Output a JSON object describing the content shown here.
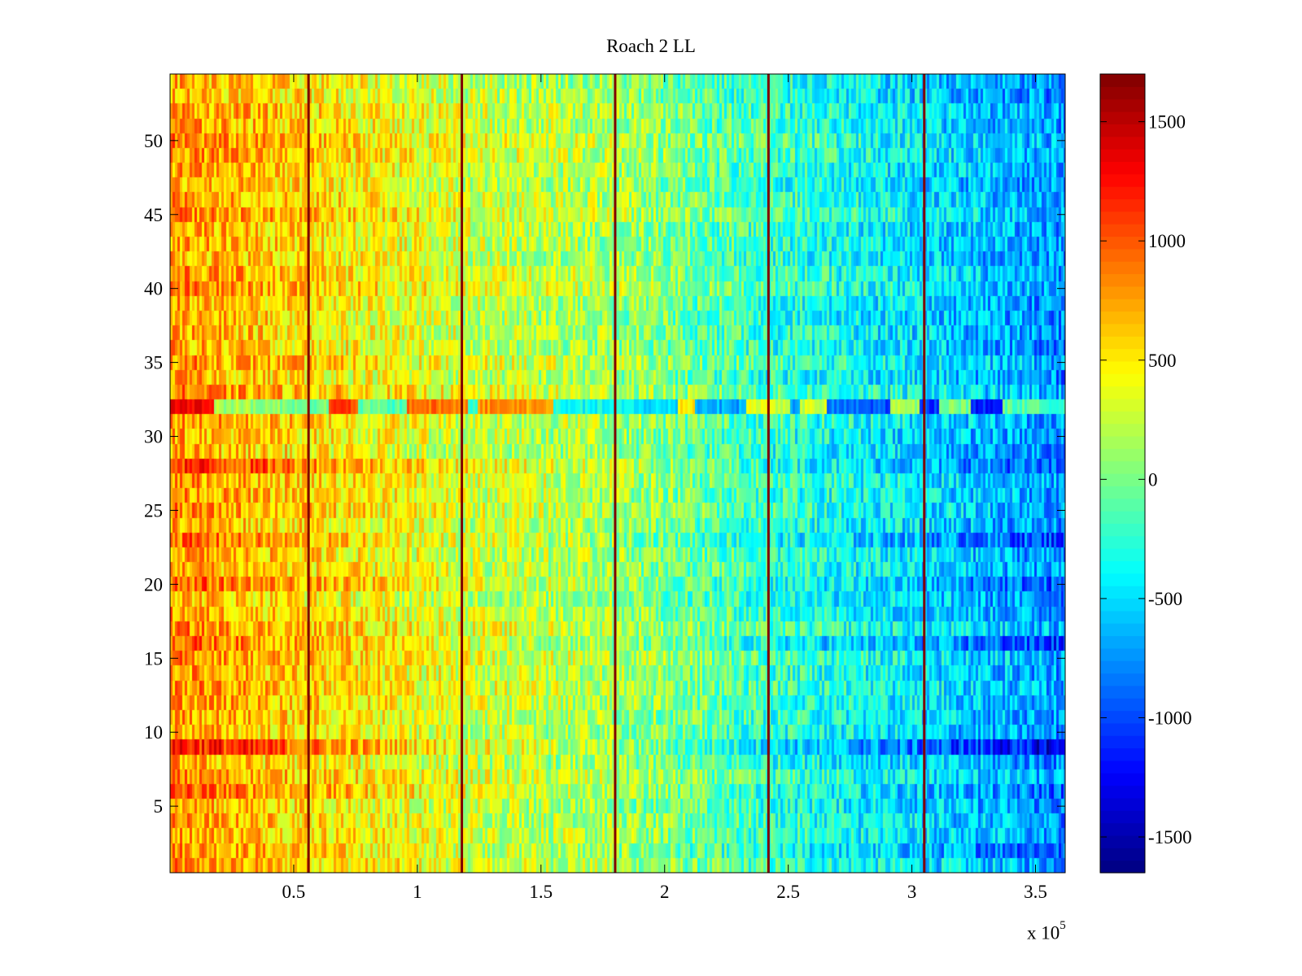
{
  "chart_data": {
    "type": "heatmap",
    "title": "Roach 2 LL",
    "xlabel": "",
    "ylabel": "",
    "x_range": [
      0,
      362000
    ],
    "y_range": [
      0.5,
      54.5
    ],
    "x_ticks": [
      50000,
      100000,
      150000,
      200000,
      250000,
      300000,
      350000
    ],
    "x_tick_labels": [
      "0.5",
      "1",
      "1.5",
      "2",
      "2.5",
      "3",
      "3.5"
    ],
    "x_exponent": {
      "base": "x 10",
      "power": "5"
    },
    "y_ticks": [
      5,
      10,
      15,
      20,
      25,
      30,
      35,
      40,
      45,
      50
    ],
    "y_tick_labels": [
      "5",
      "10",
      "15",
      "20",
      "25",
      "30",
      "35",
      "40",
      "45",
      "50"
    ],
    "colorbar": {
      "colormap": "jet",
      "range": [
        -1650,
        1700
      ],
      "ticks": [
        -1500,
        -1000,
        -500,
        0,
        500,
        1000,
        1500
      ],
      "tick_labels": [
        "-1500",
        "-1000",
        "-500",
        "0",
        "500",
        "1000",
        "1500"
      ]
    },
    "rows": 54,
    "trend": {
      "description_values_at_x": [
        0,
        60000,
        120000,
        180000,
        240000,
        300000,
        362000
      ],
      "mean_value": [
        800,
        550,
        300,
        150,
        -200,
        -450,
        -750
      ]
    },
    "row_offsets": [
      {
        "row": 9,
        "offset": 600
      },
      {
        "row": 28,
        "offset": 350
      },
      {
        "row": 16,
        "offset": 300
      },
      {
        "row": 20,
        "offset": 250
      },
      {
        "row": 23,
        "offset": 250
      },
      {
        "row": 6,
        "offset": 200
      },
      {
        "row": 2,
        "offset": 150
      }
    ],
    "anomalous_row": {
      "row": 32,
      "pattern": "alternating bands of high and low values"
    },
    "vertical_lines": {
      "x": [
        56000,
        118000,
        180000,
        242000,
        305000
      ],
      "value": 1700
    },
    "grid": false
  },
  "colors": {
    "axis": "#000000",
    "jet_low": "#00008f",
    "jet_high": "#800000"
  }
}
